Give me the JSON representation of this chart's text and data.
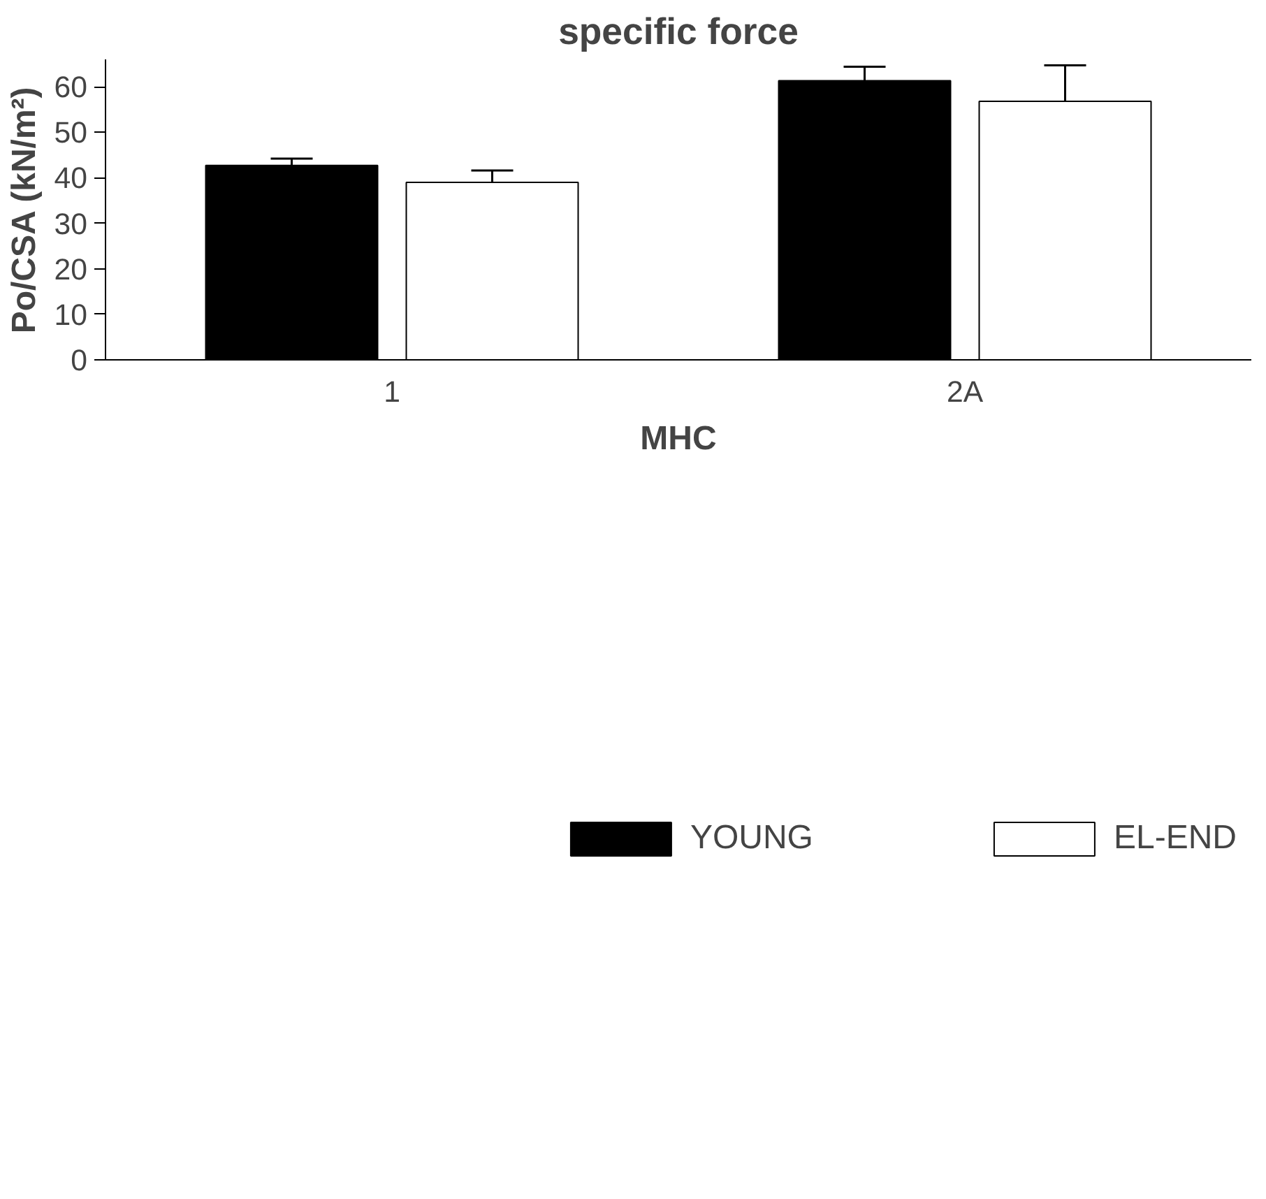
{
  "chart_data": {
    "type": "bar",
    "title": "specific force",
    "xlabel": "MHC",
    "ylabel": "Po/CSA (kN/m²)",
    "categories": [
      "1",
      "2A"
    ],
    "series": [
      {
        "name": "YOUNG",
        "color": "#000000",
        "values": [
          42.7,
          61.3
        ],
        "errors": [
          1.5,
          3.1
        ]
      },
      {
        "name": "EL-END",
        "color": "#000000",
        "values": [
          39.0,
          56.8
        ],
        "errors": [
          2.6,
          7.9
        ]
      }
    ],
    "ylim": [
      0,
      66
    ],
    "yticks": [
      0,
      10,
      20,
      30,
      40,
      50,
      60
    ],
    "grid": false,
    "legend": "bottom"
  }
}
